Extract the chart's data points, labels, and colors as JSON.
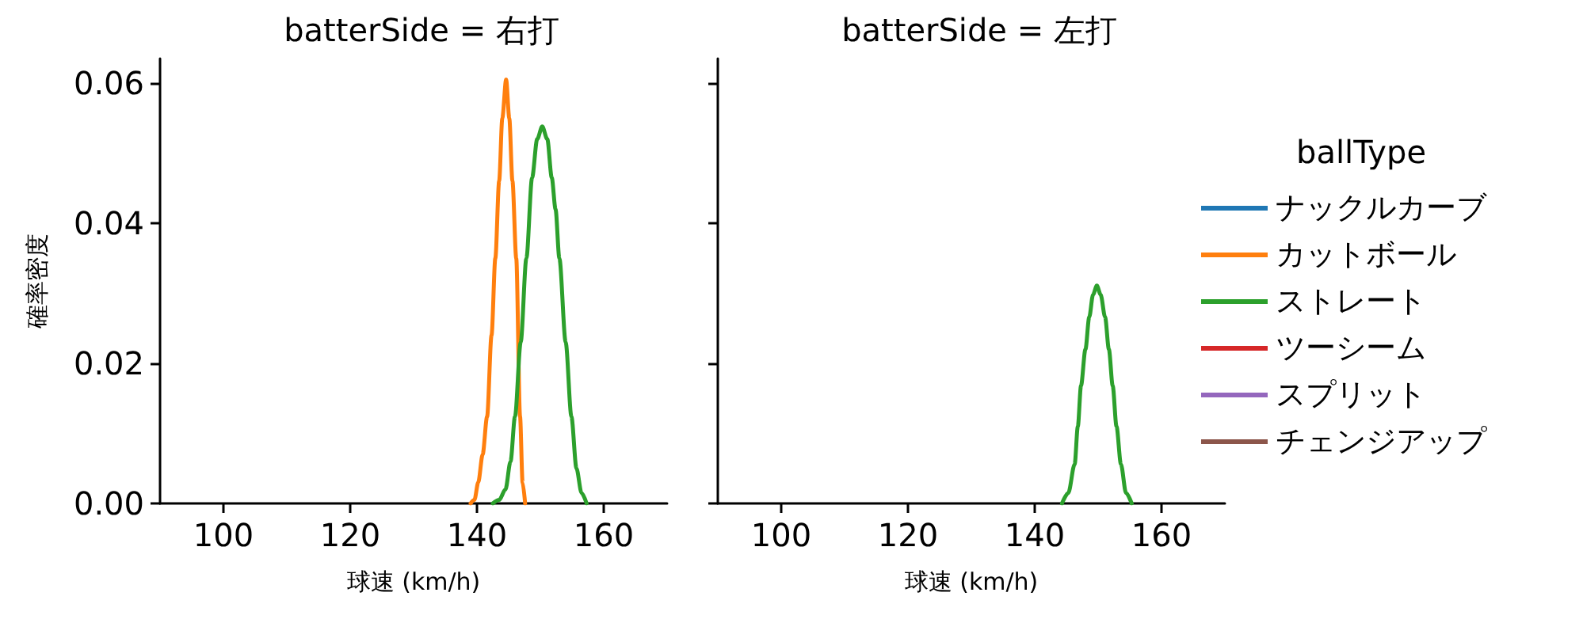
{
  "chart_data": [
    {
      "type": "line",
      "title": "batterSide = 右打",
      "xlabel": "球速 (km/h)",
      "ylabel": "確率密度",
      "xlim": [
        90,
        170
      ],
      "xticks": [
        100,
        120,
        140,
        160
      ],
      "ylim": [
        0,
        0.0635
      ],
      "yticks": [
        {
          "value": 0,
          "label": "0.00"
        },
        {
          "value": 0.02,
          "label": "0.02"
        },
        {
          "value": 0.04,
          "label": "0.04"
        },
        {
          "value": 0.06,
          "label": "0.06"
        }
      ],
      "grid": false,
      "legend": false,
      "marker": "none",
      "line_style": "solid",
      "series": [
        {
          "color": "#ff7f0e",
          "x": [
            139.0,
            139.6,
            140.2,
            140.9,
            141.6,
            142.3,
            142.9,
            143.5,
            144.0,
            144.6,
            145.1,
            145.6,
            146.2,
            146.8,
            147.2,
            147.6
          ],
          "values": [
            0,
            0.0005,
            0.003,
            0.007,
            0.0124,
            0.024,
            0.035,
            0.046,
            0.055,
            0.0605,
            0.055,
            0.046,
            0.035,
            0.0124,
            0.003,
            0
          ]
        },
        {
          "color": "#2ca02c",
          "x": [
            142.5,
            143.5,
            144.5,
            145.3,
            146.0,
            146.9,
            147.8,
            148.7,
            149.5,
            150.3,
            151.1,
            151.8,
            152.4,
            153.0,
            154.0,
            154.9,
            155.7,
            156.5,
            157.3
          ],
          "values": [
            0,
            0.0005,
            0.002,
            0.006,
            0.0124,
            0.023,
            0.035,
            0.0465,
            0.052,
            0.0538,
            0.052,
            0.0465,
            0.042,
            0.035,
            0.023,
            0.0124,
            0.005,
            0.0015,
            0
          ]
        }
      ]
    },
    {
      "type": "line",
      "title": "batterSide = 左打",
      "xlabel": "球速 (km/h)",
      "xlim": [
        90,
        170
      ],
      "xticks": [
        100,
        120,
        140,
        160
      ],
      "ylim": [
        0,
        0.0635
      ],
      "yticks": [
        {
          "value": 0,
          "label": null
        },
        {
          "value": 0.02,
          "label": null
        },
        {
          "value": 0.04,
          "label": null
        },
        {
          "value": 0.06,
          "label": null
        }
      ],
      "tick_labels": "x",
      "grid": false,
      "legend": "right",
      "legend_title": "ballType",
      "marker": "none",
      "line_style": "solid",
      "series": [
        {
          "name": "ナックルカーブ",
          "color": "#1f77b4"
        },
        {
          "name": "カットボール",
          "color": "#ff7f0e"
        },
        {
          "name": "ストレート",
          "color": "#2ca02c",
          "x": [
            144.3,
            145.3,
            146.3,
            146.8,
            147.3,
            148.0,
            148.6,
            149.2,
            149.8,
            150.4,
            151.1,
            151.7,
            152.3,
            152.9,
            153.6,
            154.4,
            155.3
          ],
          "values": [
            0,
            0.0015,
            0.0056,
            0.011,
            0.0168,
            0.022,
            0.0266,
            0.0298,
            0.0311,
            0.0298,
            0.0266,
            0.022,
            0.0168,
            0.011,
            0.0056,
            0.0015,
            0
          ]
        },
        {
          "name": "ツーシーム",
          "color": "#d62728"
        },
        {
          "name": "スプリット",
          "color": "#9467bd"
        },
        {
          "name": "チェンジアップ",
          "color": "#8c564b"
        }
      ]
    }
  ]
}
